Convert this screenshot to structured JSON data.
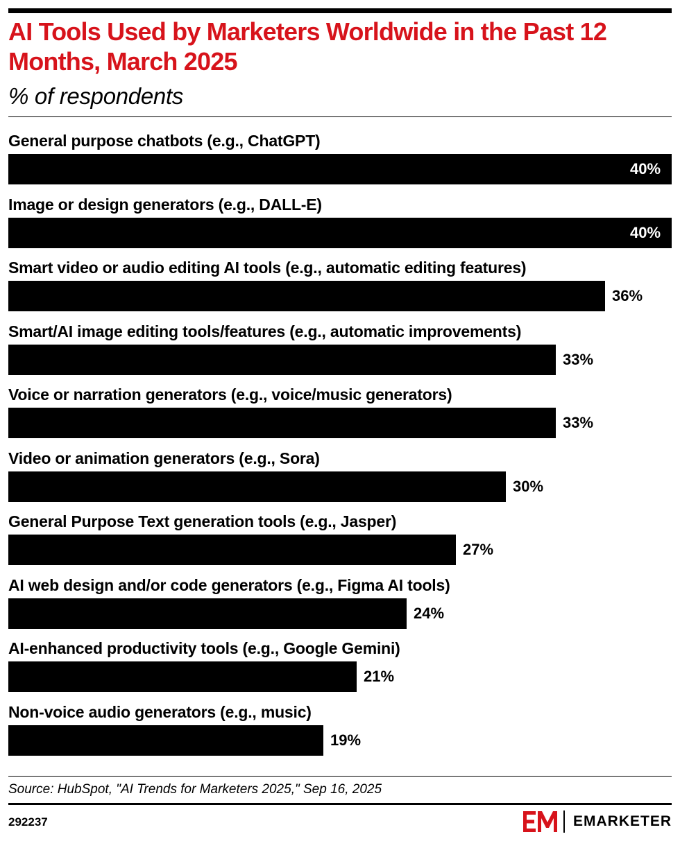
{
  "header": {
    "title": "AI Tools Used by Marketers Worldwide in the Past 12 Months, March 2025",
    "subtitle": "% of respondents"
  },
  "chart_data": {
    "type": "bar",
    "orientation": "horizontal",
    "title": "AI Tools Used by Marketers Worldwide in the Past 12 Months, March 2025",
    "subtitle": "% of respondents",
    "categories": [
      "General purpose chatbots (e.g., ChatGPT)",
      "Image or design generators (e.g., DALL-E)",
      "Smart video or audio editing AI tools (e.g., automatic editing features)",
      "Smart/AI image editing tools/features (e.g., automatic improvements)",
      "Voice or narration generators (e.g., voice/music generators)",
      "Video or animation generators (e.g., Sora)",
      "General Purpose Text generation tools (e.g., Jasper)",
      "AI web design and/or code generators (e.g., Figma AI tools)",
      "AI-enhanced productivity tools (e.g., Google Gemini)",
      "Non-voice audio generators (e.g., music)"
    ],
    "values": [
      40,
      40,
      36,
      33,
      33,
      30,
      27,
      24,
      21,
      19
    ],
    "value_suffix": "%",
    "xlim": [
      0,
      40
    ],
    "grid": false,
    "bar_color": "#000000"
  },
  "footer": {
    "source": "Source: HubSpot, \"AI Trends for Marketers 2025,\" Sep 16, 2025",
    "chart_id": "292237",
    "brand": "EMARKETER",
    "brand_icon": "em-logo-icon",
    "brand_color": "#d7131b"
  },
  "colors": {
    "title": "#d7131b",
    "text": "#000000",
    "background": "#ffffff"
  }
}
